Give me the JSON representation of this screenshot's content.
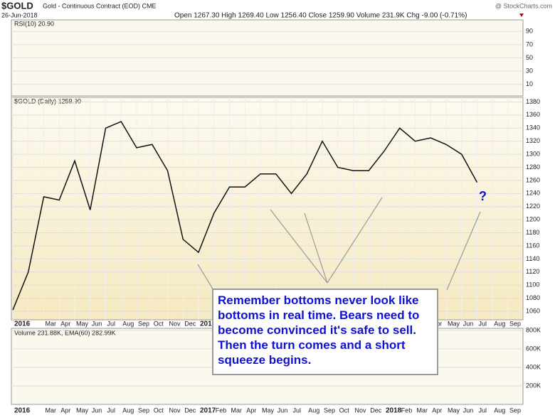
{
  "chart_data": {
    "type": "line",
    "title": "$GOLD",
    "subtitle": "Gold - Continuous Contract (EOD) CME",
    "date": "26-Jun-2018",
    "source": "@ StockCharts.com",
    "quote": "Open 1267.30 High 1269.40 Low 1256.40 Close 1259.90 Volume 231.9K Chg -9.00 (-0.71%)",
    "rsi_panel": {
      "label": "RSI(10) 20.90",
      "ylim": [
        0,
        100
      ],
      "yticks": [
        90,
        70,
        50,
        30,
        10
      ]
    },
    "volume_panel": {
      "label": "Volume 231.88K, EMA(60) 282.99K",
      "ylim": [
        0,
        870000
      ],
      "yticks": [
        {
          "value": 200000,
          "label": "200K"
        },
        {
          "value": 400000,
          "label": "400K"
        },
        {
          "value": 600000,
          "label": "600K"
        },
        {
          "value": 800000,
          "label": "800K"
        }
      ]
    },
    "price_label": "$GOLD (Daily) 1259.90",
    "categories": [
      "2016",
      null,
      "Mar",
      "Apr",
      "May",
      "Jun",
      "Jul",
      "Aug",
      "Sep",
      "Oct",
      "Nov",
      "Dec",
      "2017",
      "Feb",
      "Mar",
      "Apr",
      "May",
      "Jun",
      "Jul",
      "Aug",
      "Sep",
      "Oct",
      "Nov",
      "Dec",
      "2018",
      "Feb",
      "Mar",
      "Apr",
      "May",
      "Jun",
      "Jul",
      "Aug",
      "Sep"
    ],
    "series": [
      {
        "name": "$GOLD",
        "color": "#111111",
        "values": [
          1062,
          1120,
          1235,
          1230,
          1290,
          1215,
          1340,
          1350,
          1310,
          1315,
          1275,
          1170,
          1150,
          1210,
          1250,
          1250,
          1270,
          1270,
          1240,
          1270,
          1320,
          1280,
          1275,
          1275,
          1305,
          1340,
          1320,
          1325,
          1315,
          1300,
          1257,
          null,
          null
        ]
      }
    ],
    "ylim": [
      1047,
      1387
    ],
    "yticks": [
      1060,
      1080,
      1100,
      1120,
      1140,
      1160,
      1180,
      1200,
      1220,
      1240,
      1260,
      1280,
      1300,
      1320,
      1340,
      1360,
      1380
    ],
    "grid": true,
    "annotations": {
      "callout": "Remember bottoms never look like bottoms in real time. Bears need to become convinced it's safe to sell. Then the turn comes and a short squeeze begins.",
      "question": "?"
    }
  }
}
